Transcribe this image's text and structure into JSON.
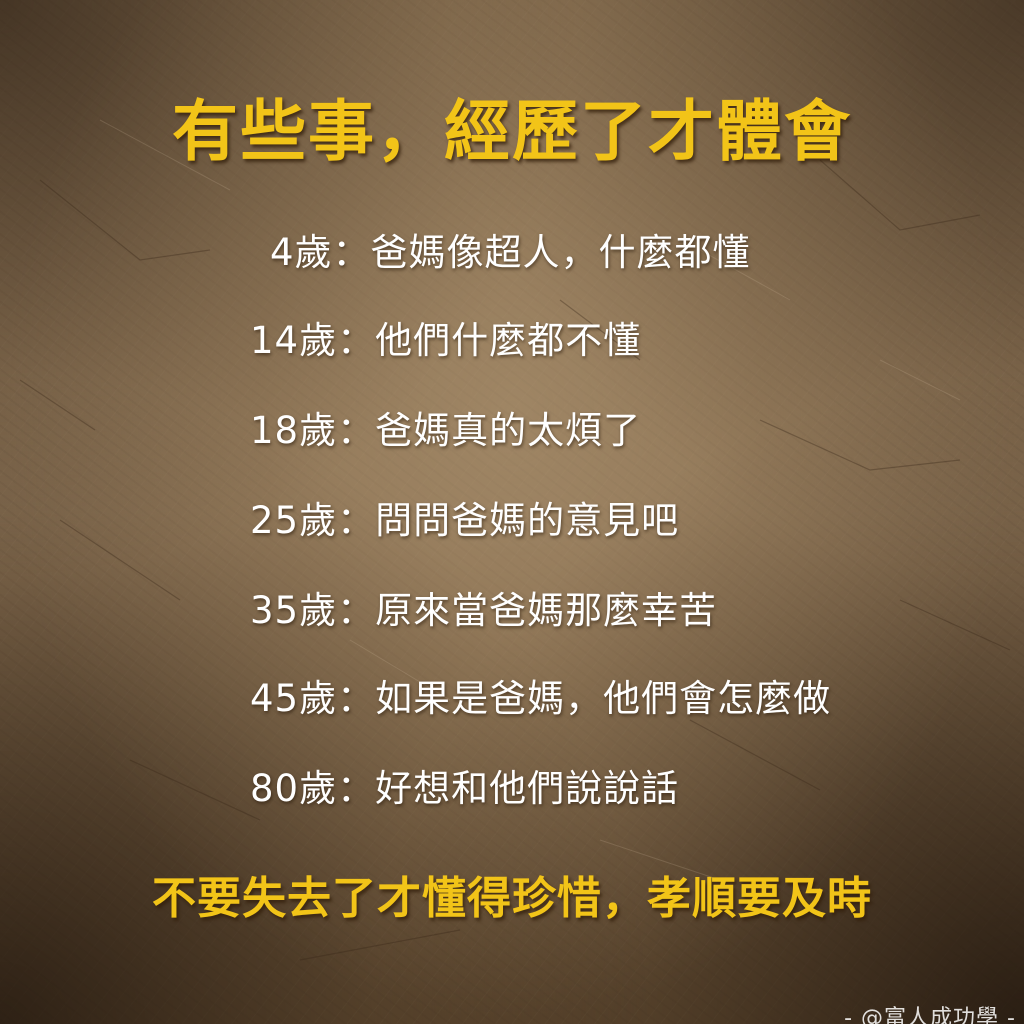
{
  "title": "有些事，經歷了才體會",
  "lines": [
    {
      "age": "4歲",
      "sep": "：",
      "text": "爸媽像超人，什麼都懂"
    },
    {
      "age": "14歲",
      "sep": "：",
      "text": "他們什麼都不懂"
    },
    {
      "age": "18歲",
      "sep": "：",
      "text": "爸媽真的太煩了"
    },
    {
      "age": "25歲",
      "sep": "：",
      "text": "問問爸媽的意見吧"
    },
    {
      "age": "35歲",
      "sep": "：",
      "text": "原來當爸媽那麼幸苦"
    },
    {
      "age": "45歲",
      "sep": "：",
      "text": "如果是爸媽，他們會怎麼做"
    },
    {
      "age": "80歲",
      "sep": "：",
      "text": "好想和他們說說話"
    }
  ],
  "footer": "不要失去了才懂得珍惜，孝順要及時",
  "watermark": "- @富人成功學 -",
  "colors": {
    "title": "#f2c418",
    "body_text": "#ffffff",
    "background": "#8a7152"
  }
}
